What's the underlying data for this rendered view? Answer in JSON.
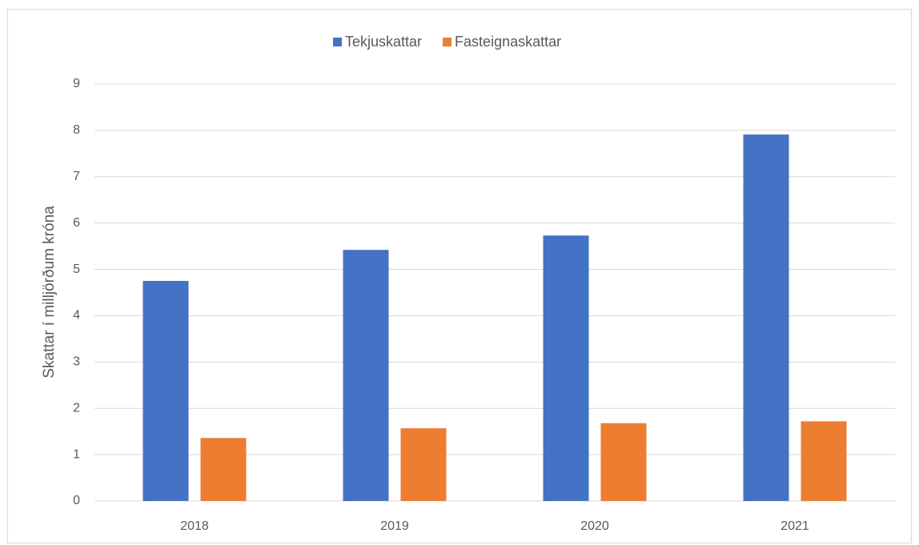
{
  "chart_data": {
    "type": "bar",
    "y_label": "Skattar í milljörðum króna",
    "categories": [
      "2018",
      "2019",
      "2020",
      "2021"
    ],
    "series": [
      {
        "name": "Tekjuskattar",
        "color": "#4472c4",
        "values": [
          4.75,
          5.42,
          5.73,
          7.91
        ]
      },
      {
        "name": "Fasteignaskattar",
        "color": "#ed7d31",
        "values": [
          1.36,
          1.57,
          1.68,
          1.72
        ]
      }
    ],
    "ylim": [
      0,
      9
    ],
    "yticks": [
      0,
      1,
      2,
      3,
      4,
      5,
      6,
      7,
      8,
      9
    ],
    "grid": true,
    "legend": "top"
  }
}
